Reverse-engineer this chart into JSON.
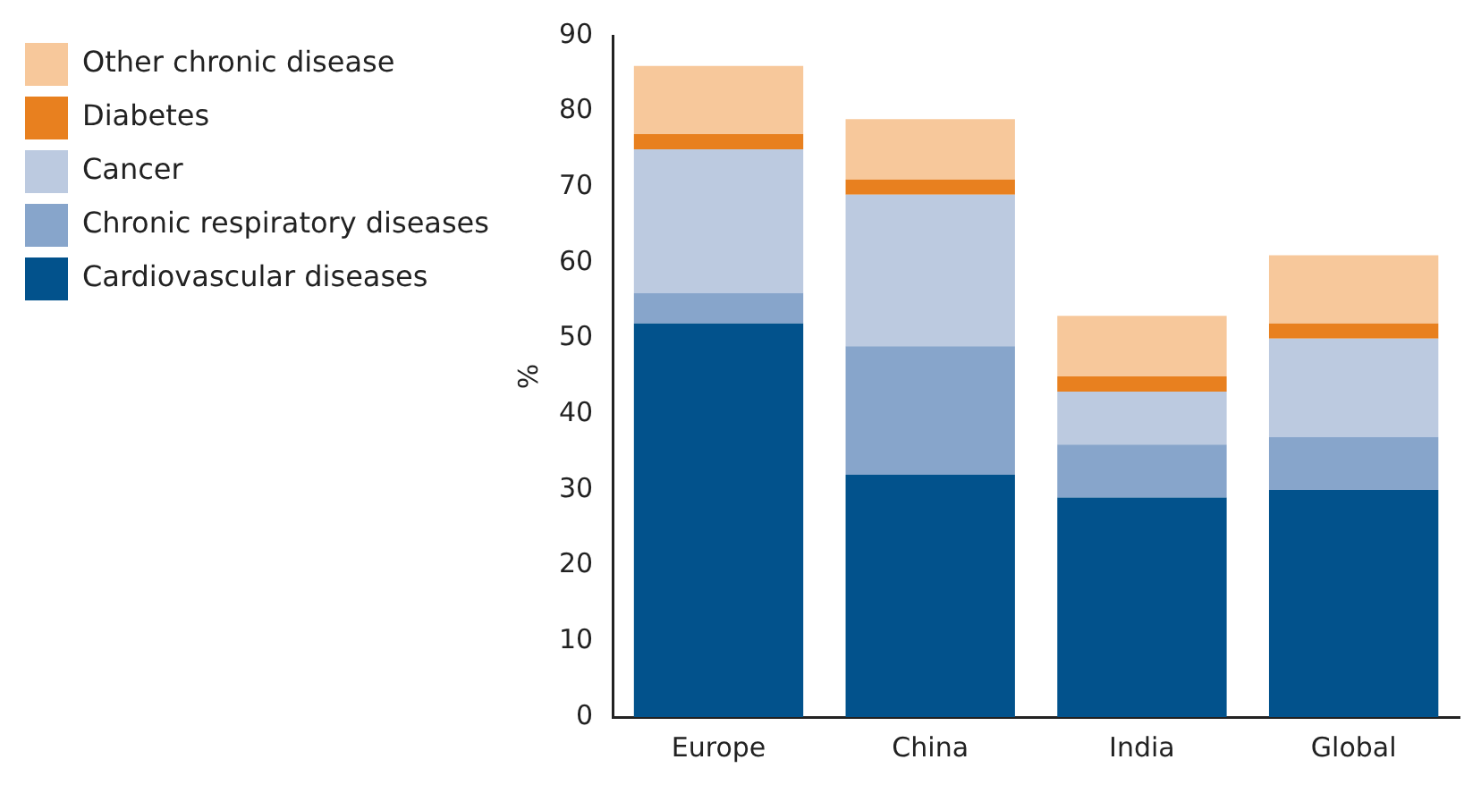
{
  "chart_data": {
    "type": "bar",
    "stacked": true,
    "ylabel": "%",
    "categories": [
      "Europe",
      "China",
      "India",
      "Global"
    ],
    "series": [
      {
        "name": "Cardiovascular diseases",
        "color": "#02528c",
        "values": [
          52,
          32,
          29,
          30
        ]
      },
      {
        "name": "Chronic respiratory diseases",
        "color": "#87a5cb",
        "values": [
          4,
          17,
          7,
          7
        ]
      },
      {
        "name": "Cancer",
        "color": "#bccae0",
        "values": [
          19,
          20,
          7,
          13
        ]
      },
      {
        "name": "Diabetes",
        "color": "#e8801f",
        "values": [
          2,
          2,
          2,
          2
        ]
      },
      {
        "name": "Other chronic disease",
        "color": "#f7c89b",
        "values": [
          9,
          8,
          8,
          9
        ]
      }
    ],
    "ylim": [
      0,
      90
    ],
    "yticks": [
      0,
      10,
      20,
      30,
      40,
      50,
      60,
      70,
      80,
      90
    ],
    "grid": false,
    "legend": "left"
  }
}
